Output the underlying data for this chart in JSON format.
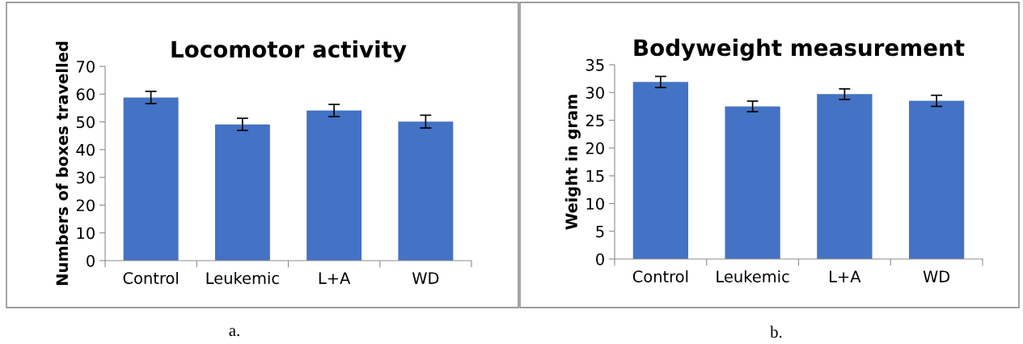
{
  "chart_data": [
    {
      "type": "bar",
      "title": "Locomotor activity",
      "ylabel": "Numbers of boxes travelled",
      "categories": [
        "Control",
        "Leukemic",
        "L+A",
        "WD"
      ],
      "series": [
        {
          "color": "#4472c4",
          "values": [
            58.8,
            49.1,
            54.1,
            50.1
          ],
          "errors": [
            2.2,
            2.2,
            2.2,
            2.3
          ]
        }
      ],
      "ylim": [
        0,
        70
      ],
      "yticks": [
        0,
        10,
        20,
        30,
        40,
        50,
        60,
        70
      ],
      "grid": false,
      "legend": false,
      "annotations": [
        "a."
      ]
    },
    {
      "type": "bar",
      "title": "Bodyweight measurement",
      "ylabel": "Weight in gram",
      "categories": [
        "Control",
        "Leukemic",
        "L+A",
        "WD"
      ],
      "series": [
        {
          "color": "#4472c4",
          "values": [
            31.9,
            27.5,
            29.7,
            28.5
          ],
          "errors": [
            1.0,
            0.95,
            0.95,
            1.0
          ]
        }
      ],
      "ylim": [
        0,
        35
      ],
      "yticks": [
        0,
        5,
        10,
        15,
        20,
        25,
        30,
        35
      ],
      "grid": false,
      "legend": false,
      "annotations": [
        "b."
      ]
    }
  ]
}
